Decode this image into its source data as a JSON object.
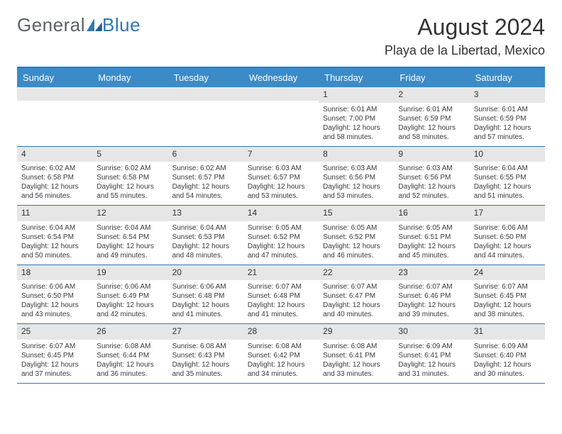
{
  "logo": {
    "text1": "General",
    "text2": "Blue"
  },
  "title": "August 2024",
  "location": "Playa de la Libertad, Mexico",
  "colors": {
    "header_bar": "#3b8bc9",
    "border": "#2f78b7",
    "daynum_bg": "#e6e6e6",
    "text": "#333333"
  },
  "day_names": [
    "Sunday",
    "Monday",
    "Tuesday",
    "Wednesday",
    "Thursday",
    "Friday",
    "Saturday"
  ],
  "weeks": [
    [
      null,
      null,
      null,
      null,
      {
        "n": "1",
        "sr": "Sunrise: 6:01 AM",
        "ss": "Sunset: 7:00 PM",
        "d1": "Daylight: 12 hours",
        "d2": "and 58 minutes."
      },
      {
        "n": "2",
        "sr": "Sunrise: 6:01 AM",
        "ss": "Sunset: 6:59 PM",
        "d1": "Daylight: 12 hours",
        "d2": "and 58 minutes."
      },
      {
        "n": "3",
        "sr": "Sunrise: 6:01 AM",
        "ss": "Sunset: 6:59 PM",
        "d1": "Daylight: 12 hours",
        "d2": "and 57 minutes."
      }
    ],
    [
      {
        "n": "4",
        "sr": "Sunrise: 6:02 AM",
        "ss": "Sunset: 6:58 PM",
        "d1": "Daylight: 12 hours",
        "d2": "and 56 minutes."
      },
      {
        "n": "5",
        "sr": "Sunrise: 6:02 AM",
        "ss": "Sunset: 6:58 PM",
        "d1": "Daylight: 12 hours",
        "d2": "and 55 minutes."
      },
      {
        "n": "6",
        "sr": "Sunrise: 6:02 AM",
        "ss": "Sunset: 6:57 PM",
        "d1": "Daylight: 12 hours",
        "d2": "and 54 minutes."
      },
      {
        "n": "7",
        "sr": "Sunrise: 6:03 AM",
        "ss": "Sunset: 6:57 PM",
        "d1": "Daylight: 12 hours",
        "d2": "and 53 minutes."
      },
      {
        "n": "8",
        "sr": "Sunrise: 6:03 AM",
        "ss": "Sunset: 6:56 PM",
        "d1": "Daylight: 12 hours",
        "d2": "and 53 minutes."
      },
      {
        "n": "9",
        "sr": "Sunrise: 6:03 AM",
        "ss": "Sunset: 6:56 PM",
        "d1": "Daylight: 12 hours",
        "d2": "and 52 minutes."
      },
      {
        "n": "10",
        "sr": "Sunrise: 6:04 AM",
        "ss": "Sunset: 6:55 PM",
        "d1": "Daylight: 12 hours",
        "d2": "and 51 minutes."
      }
    ],
    [
      {
        "n": "11",
        "sr": "Sunrise: 6:04 AM",
        "ss": "Sunset: 6:54 PM",
        "d1": "Daylight: 12 hours",
        "d2": "and 50 minutes."
      },
      {
        "n": "12",
        "sr": "Sunrise: 6:04 AM",
        "ss": "Sunset: 6:54 PM",
        "d1": "Daylight: 12 hours",
        "d2": "and 49 minutes."
      },
      {
        "n": "13",
        "sr": "Sunrise: 6:04 AM",
        "ss": "Sunset: 6:53 PM",
        "d1": "Daylight: 12 hours",
        "d2": "and 48 minutes."
      },
      {
        "n": "14",
        "sr": "Sunrise: 6:05 AM",
        "ss": "Sunset: 6:52 PM",
        "d1": "Daylight: 12 hours",
        "d2": "and 47 minutes."
      },
      {
        "n": "15",
        "sr": "Sunrise: 6:05 AM",
        "ss": "Sunset: 6:52 PM",
        "d1": "Daylight: 12 hours",
        "d2": "and 46 minutes."
      },
      {
        "n": "16",
        "sr": "Sunrise: 6:05 AM",
        "ss": "Sunset: 6:51 PM",
        "d1": "Daylight: 12 hours",
        "d2": "and 45 minutes."
      },
      {
        "n": "17",
        "sr": "Sunrise: 6:06 AM",
        "ss": "Sunset: 6:50 PM",
        "d1": "Daylight: 12 hours",
        "d2": "and 44 minutes."
      }
    ],
    [
      {
        "n": "18",
        "sr": "Sunrise: 6:06 AM",
        "ss": "Sunset: 6:50 PM",
        "d1": "Daylight: 12 hours",
        "d2": "and 43 minutes."
      },
      {
        "n": "19",
        "sr": "Sunrise: 6:06 AM",
        "ss": "Sunset: 6:49 PM",
        "d1": "Daylight: 12 hours",
        "d2": "and 42 minutes."
      },
      {
        "n": "20",
        "sr": "Sunrise: 6:06 AM",
        "ss": "Sunset: 6:48 PM",
        "d1": "Daylight: 12 hours",
        "d2": "and 41 minutes."
      },
      {
        "n": "21",
        "sr": "Sunrise: 6:07 AM",
        "ss": "Sunset: 6:48 PM",
        "d1": "Daylight: 12 hours",
        "d2": "and 41 minutes."
      },
      {
        "n": "22",
        "sr": "Sunrise: 6:07 AM",
        "ss": "Sunset: 6:47 PM",
        "d1": "Daylight: 12 hours",
        "d2": "and 40 minutes."
      },
      {
        "n": "23",
        "sr": "Sunrise: 6:07 AM",
        "ss": "Sunset: 6:46 PM",
        "d1": "Daylight: 12 hours",
        "d2": "and 39 minutes."
      },
      {
        "n": "24",
        "sr": "Sunrise: 6:07 AM",
        "ss": "Sunset: 6:45 PM",
        "d1": "Daylight: 12 hours",
        "d2": "and 38 minutes."
      }
    ],
    [
      {
        "n": "25",
        "sr": "Sunrise: 6:07 AM",
        "ss": "Sunset: 6:45 PM",
        "d1": "Daylight: 12 hours",
        "d2": "and 37 minutes."
      },
      {
        "n": "26",
        "sr": "Sunrise: 6:08 AM",
        "ss": "Sunset: 6:44 PM",
        "d1": "Daylight: 12 hours",
        "d2": "and 36 minutes."
      },
      {
        "n": "27",
        "sr": "Sunrise: 6:08 AM",
        "ss": "Sunset: 6:43 PM",
        "d1": "Daylight: 12 hours",
        "d2": "and 35 minutes."
      },
      {
        "n": "28",
        "sr": "Sunrise: 6:08 AM",
        "ss": "Sunset: 6:42 PM",
        "d1": "Daylight: 12 hours",
        "d2": "and 34 minutes."
      },
      {
        "n": "29",
        "sr": "Sunrise: 6:08 AM",
        "ss": "Sunset: 6:41 PM",
        "d1": "Daylight: 12 hours",
        "d2": "and 33 minutes."
      },
      {
        "n": "30",
        "sr": "Sunrise: 6:09 AM",
        "ss": "Sunset: 6:41 PM",
        "d1": "Daylight: 12 hours",
        "d2": "and 31 minutes."
      },
      {
        "n": "31",
        "sr": "Sunrise: 6:09 AM",
        "ss": "Sunset: 6:40 PM",
        "d1": "Daylight: 12 hours",
        "d2": "and 30 minutes."
      }
    ]
  ]
}
